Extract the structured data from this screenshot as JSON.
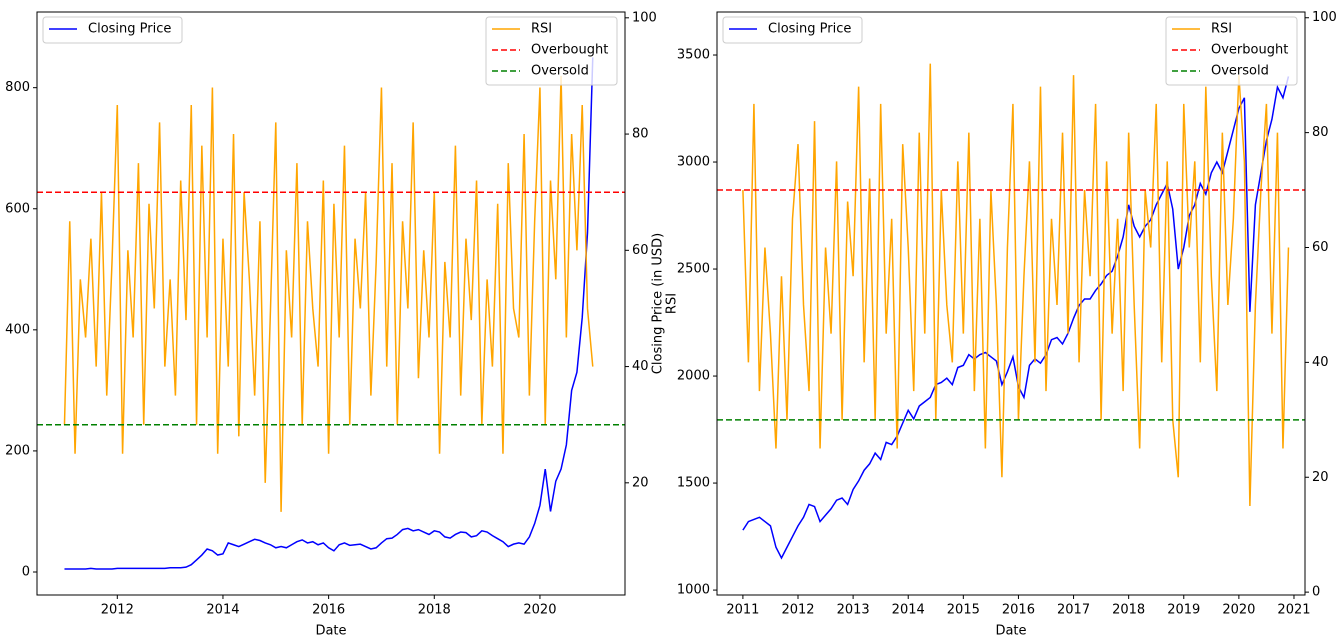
{
  "chart_data": [
    {
      "type": "line",
      "xlabel": "Date",
      "y2label": "RSI",
      "x": [
        2011.0,
        2011.1,
        2011.2,
        2011.3,
        2011.4,
        2011.5,
        2011.6,
        2011.7,
        2011.8,
        2011.9,
        2012.0,
        2012.1,
        2012.2,
        2012.3,
        2012.4,
        2012.5,
        2012.6,
        2012.7,
        2012.8,
        2012.9,
        2013.0,
        2013.1,
        2013.2,
        2013.3,
        2013.4,
        2013.5,
        2013.6,
        2013.7,
        2013.8,
        2013.9,
        2014.0,
        2014.1,
        2014.2,
        2014.3,
        2014.4,
        2014.5,
        2014.6,
        2014.7,
        2014.8,
        2014.9,
        2015.0,
        2015.1,
        2015.2,
        2015.3,
        2015.4,
        2015.5,
        2015.6,
        2015.7,
        2015.8,
        2015.9,
        2016.0,
        2016.1,
        2016.2,
        2016.3,
        2016.4,
        2016.5,
        2016.6,
        2016.7,
        2016.8,
        2016.9,
        2017.0,
        2017.1,
        2017.2,
        2017.3,
        2017.4,
        2017.5,
        2017.6,
        2017.7,
        2017.8,
        2017.9,
        2018.0,
        2018.1,
        2018.2,
        2018.3,
        2018.4,
        2018.5,
        2018.6,
        2018.7,
        2018.8,
        2018.9,
        2019.0,
        2019.1,
        2019.2,
        2019.3,
        2019.4,
        2019.5,
        2019.6,
        2019.7,
        2019.8,
        2019.9,
        2020.0,
        2020.1,
        2020.2,
        2020.3,
        2020.4,
        2020.5,
        2020.6,
        2020.7,
        2020.8,
        2020.9,
        2021.0
      ],
      "xlim": [
        2010.48,
        2021.61
      ],
      "xticks": [
        2012,
        2014,
        2016,
        2018,
        2020
      ],
      "ylim": [
        -38,
        925
      ],
      "yticks": [
        0,
        200,
        400,
        600,
        800
      ],
      "y2lim": [
        0.7,
        101
      ],
      "y2ticks": [
        20,
        40,
        60,
        80,
        100
      ],
      "series": [
        {
          "name": "Closing Price",
          "color": "#0000ff",
          "axis": "y",
          "values": [
            5,
            5,
            5,
            5,
            5,
            6,
            5,
            5,
            5,
            5,
            6,
            6,
            6,
            6,
            6,
            6,
            6,
            6,
            6,
            6,
            7,
            7,
            7,
            8,
            12,
            20,
            28,
            38,
            35,
            28,
            30,
            48,
            45,
            42,
            46,
            50,
            54,
            52,
            48,
            45,
            40,
            42,
            40,
            45,
            50,
            53,
            48,
            50,
            45,
            48,
            40,
            35,
            45,
            48,
            44,
            45,
            46,
            42,
            38,
            40,
            48,
            55,
            56,
            62,
            70,
            72,
            68,
            70,
            66,
            62,
            68,
            66,
            58,
            56,
            62,
            66,
            65,
            58,
            60,
            68,
            66,
            60,
            55,
            50,
            42,
            46,
            48,
            46,
            58,
            80,
            110,
            170,
            100,
            150,
            170,
            210,
            300,
            330,
            420,
            560,
            850
          ]
        },
        {
          "name": "RSI",
          "color": "#ffa500",
          "axis": "y2",
          "values": [
            30,
            65,
            25,
            55,
            45,
            62,
            40,
            70,
            35,
            58,
            85,
            25,
            60,
            45,
            75,
            30,
            68,
            50,
            82,
            40,
            55,
            35,
            72,
            48,
            85,
            30,
            78,
            45,
            88,
            25,
            62,
            40,
            80,
            28,
            70,
            55,
            35,
            65,
            20,
            50,
            82,
            15,
            60,
            45,
            75,
            30,
            65,
            50,
            40,
            72,
            25,
            68,
            45,
            78,
            30,
            62,
            50,
            70,
            35,
            58,
            88,
            40,
            75,
            30,
            65,
            50,
            82,
            38,
            60,
            45,
            70,
            25,
            58,
            45,
            78,
            35,
            62,
            48,
            72,
            30,
            55,
            40,
            68,
            25,
            75,
            50,
            45,
            80,
            35,
            65,
            88,
            30,
            72,
            55,
            90,
            45,
            80,
            60,
            85,
            50,
            40
          ]
        }
      ],
      "hlines": [
        {
          "name": "Overbought",
          "value": 70,
          "color": "#ff0000",
          "axis": "y2"
        },
        {
          "name": "Oversold",
          "value": 30,
          "color": "#008000",
          "axis": "y2"
        }
      ]
    },
    {
      "type": "line",
      "xlabel": "Date",
      "ylabel": "Closing Price (in USD)",
      "x": [
        2011.0,
        2011.1,
        2011.2,
        2011.3,
        2011.4,
        2011.5,
        2011.6,
        2011.7,
        2011.8,
        2011.9,
        2012.0,
        2012.1,
        2012.2,
        2012.3,
        2012.4,
        2012.5,
        2012.6,
        2012.7,
        2012.8,
        2012.9,
        2013.0,
        2013.1,
        2013.2,
        2013.3,
        2013.4,
        2013.5,
        2013.6,
        2013.7,
        2013.8,
        2013.9,
        2014.0,
        2014.1,
        2014.2,
        2014.3,
        2014.4,
        2014.5,
        2014.6,
        2014.7,
        2014.8,
        2014.9,
        2015.0,
        2015.1,
        2015.2,
        2015.3,
        2015.4,
        2015.5,
        2015.6,
        2015.7,
        2015.8,
        2015.9,
        2016.0,
        2016.1,
        2016.2,
        2016.3,
        2016.4,
        2016.5,
        2016.6,
        2016.7,
        2016.8,
        2016.9,
        2017.0,
        2017.1,
        2017.2,
        2017.3,
        2017.4,
        2017.5,
        2017.6,
        2017.7,
        2017.8,
        2017.9,
        2018.0,
        2018.1,
        2018.2,
        2018.3,
        2018.4,
        2018.5,
        2018.6,
        2018.7,
        2018.8,
        2018.9,
        2019.0,
        2019.1,
        2019.2,
        2019.3,
        2019.4,
        2019.5,
        2019.6,
        2019.7,
        2019.8,
        2019.9,
        2020.0,
        2020.1,
        2020.2,
        2020.3,
        2020.4,
        2020.5,
        2020.6,
        2020.7,
        2020.8,
        2020.9
      ],
      "xlim": [
        2010.53,
        2021.2
      ],
      "xticks": [
        2011,
        2012,
        2013,
        2014,
        2015,
        2016,
        2017,
        2018,
        2019,
        2020,
        2021
      ],
      "ylim": [
        977,
        3701
      ],
      "yticks": [
        1000,
        1500,
        2000,
        2500,
        3000,
        3500
      ],
      "y2lim": [
        -0.5,
        101
      ],
      "y2ticks": [
        0,
        20,
        40,
        60,
        80,
        100
      ],
      "series": [
        {
          "name": "Closing Price",
          "color": "#0000ff",
          "axis": "y",
          "values": [
            1280,
            1320,
            1330,
            1340,
            1320,
            1300,
            1200,
            1150,
            1200,
            1250,
            1300,
            1340,
            1400,
            1390,
            1320,
            1350,
            1380,
            1420,
            1430,
            1400,
            1470,
            1510,
            1560,
            1590,
            1640,
            1610,
            1690,
            1680,
            1720,
            1780,
            1840,
            1800,
            1860,
            1880,
            1900,
            1960,
            1970,
            1990,
            1960,
            2040,
            2050,
            2100,
            2080,
            2100,
            2110,
            2090,
            2070,
            1960,
            2020,
            2090,
            1950,
            1900,
            2050,
            2080,
            2060,
            2100,
            2170,
            2180,
            2150,
            2200,
            2270,
            2330,
            2360,
            2360,
            2400,
            2430,
            2470,
            2490,
            2560,
            2650,
            2800,
            2700,
            2650,
            2700,
            2730,
            2800,
            2850,
            2900,
            2780,
            2500,
            2600,
            2750,
            2800,
            2900,
            2850,
            2950,
            3000,
            2950,
            3050,
            3150,
            3250,
            3300,
            2300,
            2800,
            2950,
            3100,
            3200,
            3350,
            3300,
            3400
          ]
        },
        {
          "name": "RSI",
          "color": "#ffa500",
          "axis": "y2",
          "values": [
            70,
            40,
            85,
            35,
            60,
            45,
            25,
            55,
            30,
            65,
            78,
            50,
            35,
            82,
            25,
            60,
            45,
            75,
            30,
            68,
            55,
            88,
            40,
            72,
            30,
            85,
            45,
            65,
            25,
            78,
            60,
            35,
            80,
            45,
            92,
            30,
            70,
            50,
            40,
            75,
            45,
            80,
            35,
            65,
            25,
            70,
            50,
            20,
            60,
            85,
            30,
            55,
            75,
            40,
            88,
            35,
            65,
            50,
            80,
            45,
            90,
            40,
            70,
            55,
            85,
            30,
            75,
            45,
            65,
            35,
            80,
            50,
            25,
            70,
            60,
            85,
            40,
            75,
            30,
            20,
            85,
            60,
            75,
            40,
            88,
            55,
            35,
            80,
            50,
            65,
            90,
            75,
            15,
            50,
            70,
            85,
            45,
            80,
            25,
            60
          ]
        }
      ],
      "hlines": [
        {
          "name": "Overbought",
          "value": 70,
          "color": "#ff0000",
          "axis": "y2"
        },
        {
          "name": "Oversold",
          "value": 30,
          "color": "#008000",
          "axis": "y2"
        }
      ]
    }
  ]
}
